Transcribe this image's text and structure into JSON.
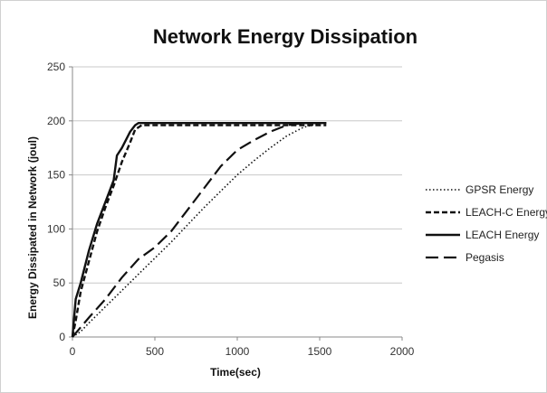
{
  "chart_data": {
    "type": "line",
    "title": "Network Energy Dissipation",
    "xlabel": "Time(sec)",
    "ylabel": "Energy Dissipated in Network  (joul)",
    "xlim": [
      0,
      2000
    ],
    "ylim": [
      0,
      250
    ],
    "xticks": [
      0,
      500,
      1000,
      1500,
      2000
    ],
    "yticks": [
      0,
      50,
      100,
      150,
      200,
      250
    ],
    "grid": "horizontal",
    "legend_position": "right",
    "series": [
      {
        "name": "GPSR Energy",
        "dash": "dotted",
        "x": [
          0,
          50,
          100,
          200,
          300,
          400,
          500,
          600,
          700,
          800,
          900,
          1000,
          1100,
          1200,
          1300,
          1400,
          1500,
          1540
        ],
        "y": [
          0,
          5,
          13,
          28,
          43,
          58,
          73,
          88,
          104,
          120,
          135,
          150,
          163,
          175,
          186,
          194,
          198,
          198
        ]
      },
      {
        "name": "LEACH-C Energy",
        "dash": "short-dash",
        "x": [
          0,
          20,
          50,
          100,
          150,
          200,
          250,
          300,
          350,
          380,
          420,
          500,
          1000,
          1540
        ],
        "y": [
          0,
          15,
          42,
          70,
          98,
          120,
          140,
          162,
          180,
          192,
          196,
          196,
          196,
          196
        ]
      },
      {
        "name": "LEACH Energy",
        "dash": "solid",
        "x": [
          0,
          20,
          50,
          100,
          150,
          200,
          250,
          270,
          300,
          350,
          380,
          400,
          500,
          1000,
          1540
        ],
        "y": [
          0,
          35,
          50,
          80,
          105,
          125,
          145,
          168,
          175,
          190,
          196,
          198,
          198,
          198,
          198
        ]
      },
      {
        "name": "Pegasis",
        "dash": "long-dash",
        "x": [
          0,
          100,
          200,
          300,
          400,
          500,
          600,
          700,
          800,
          900,
          1000,
          1100,
          1200,
          1300,
          1400,
          1500,
          1540
        ],
        "y": [
          0,
          18,
          35,
          55,
          72,
          83,
          98,
          118,
          138,
          158,
          173,
          182,
          190,
          196,
          198,
          198,
          198
        ]
      }
    ]
  }
}
